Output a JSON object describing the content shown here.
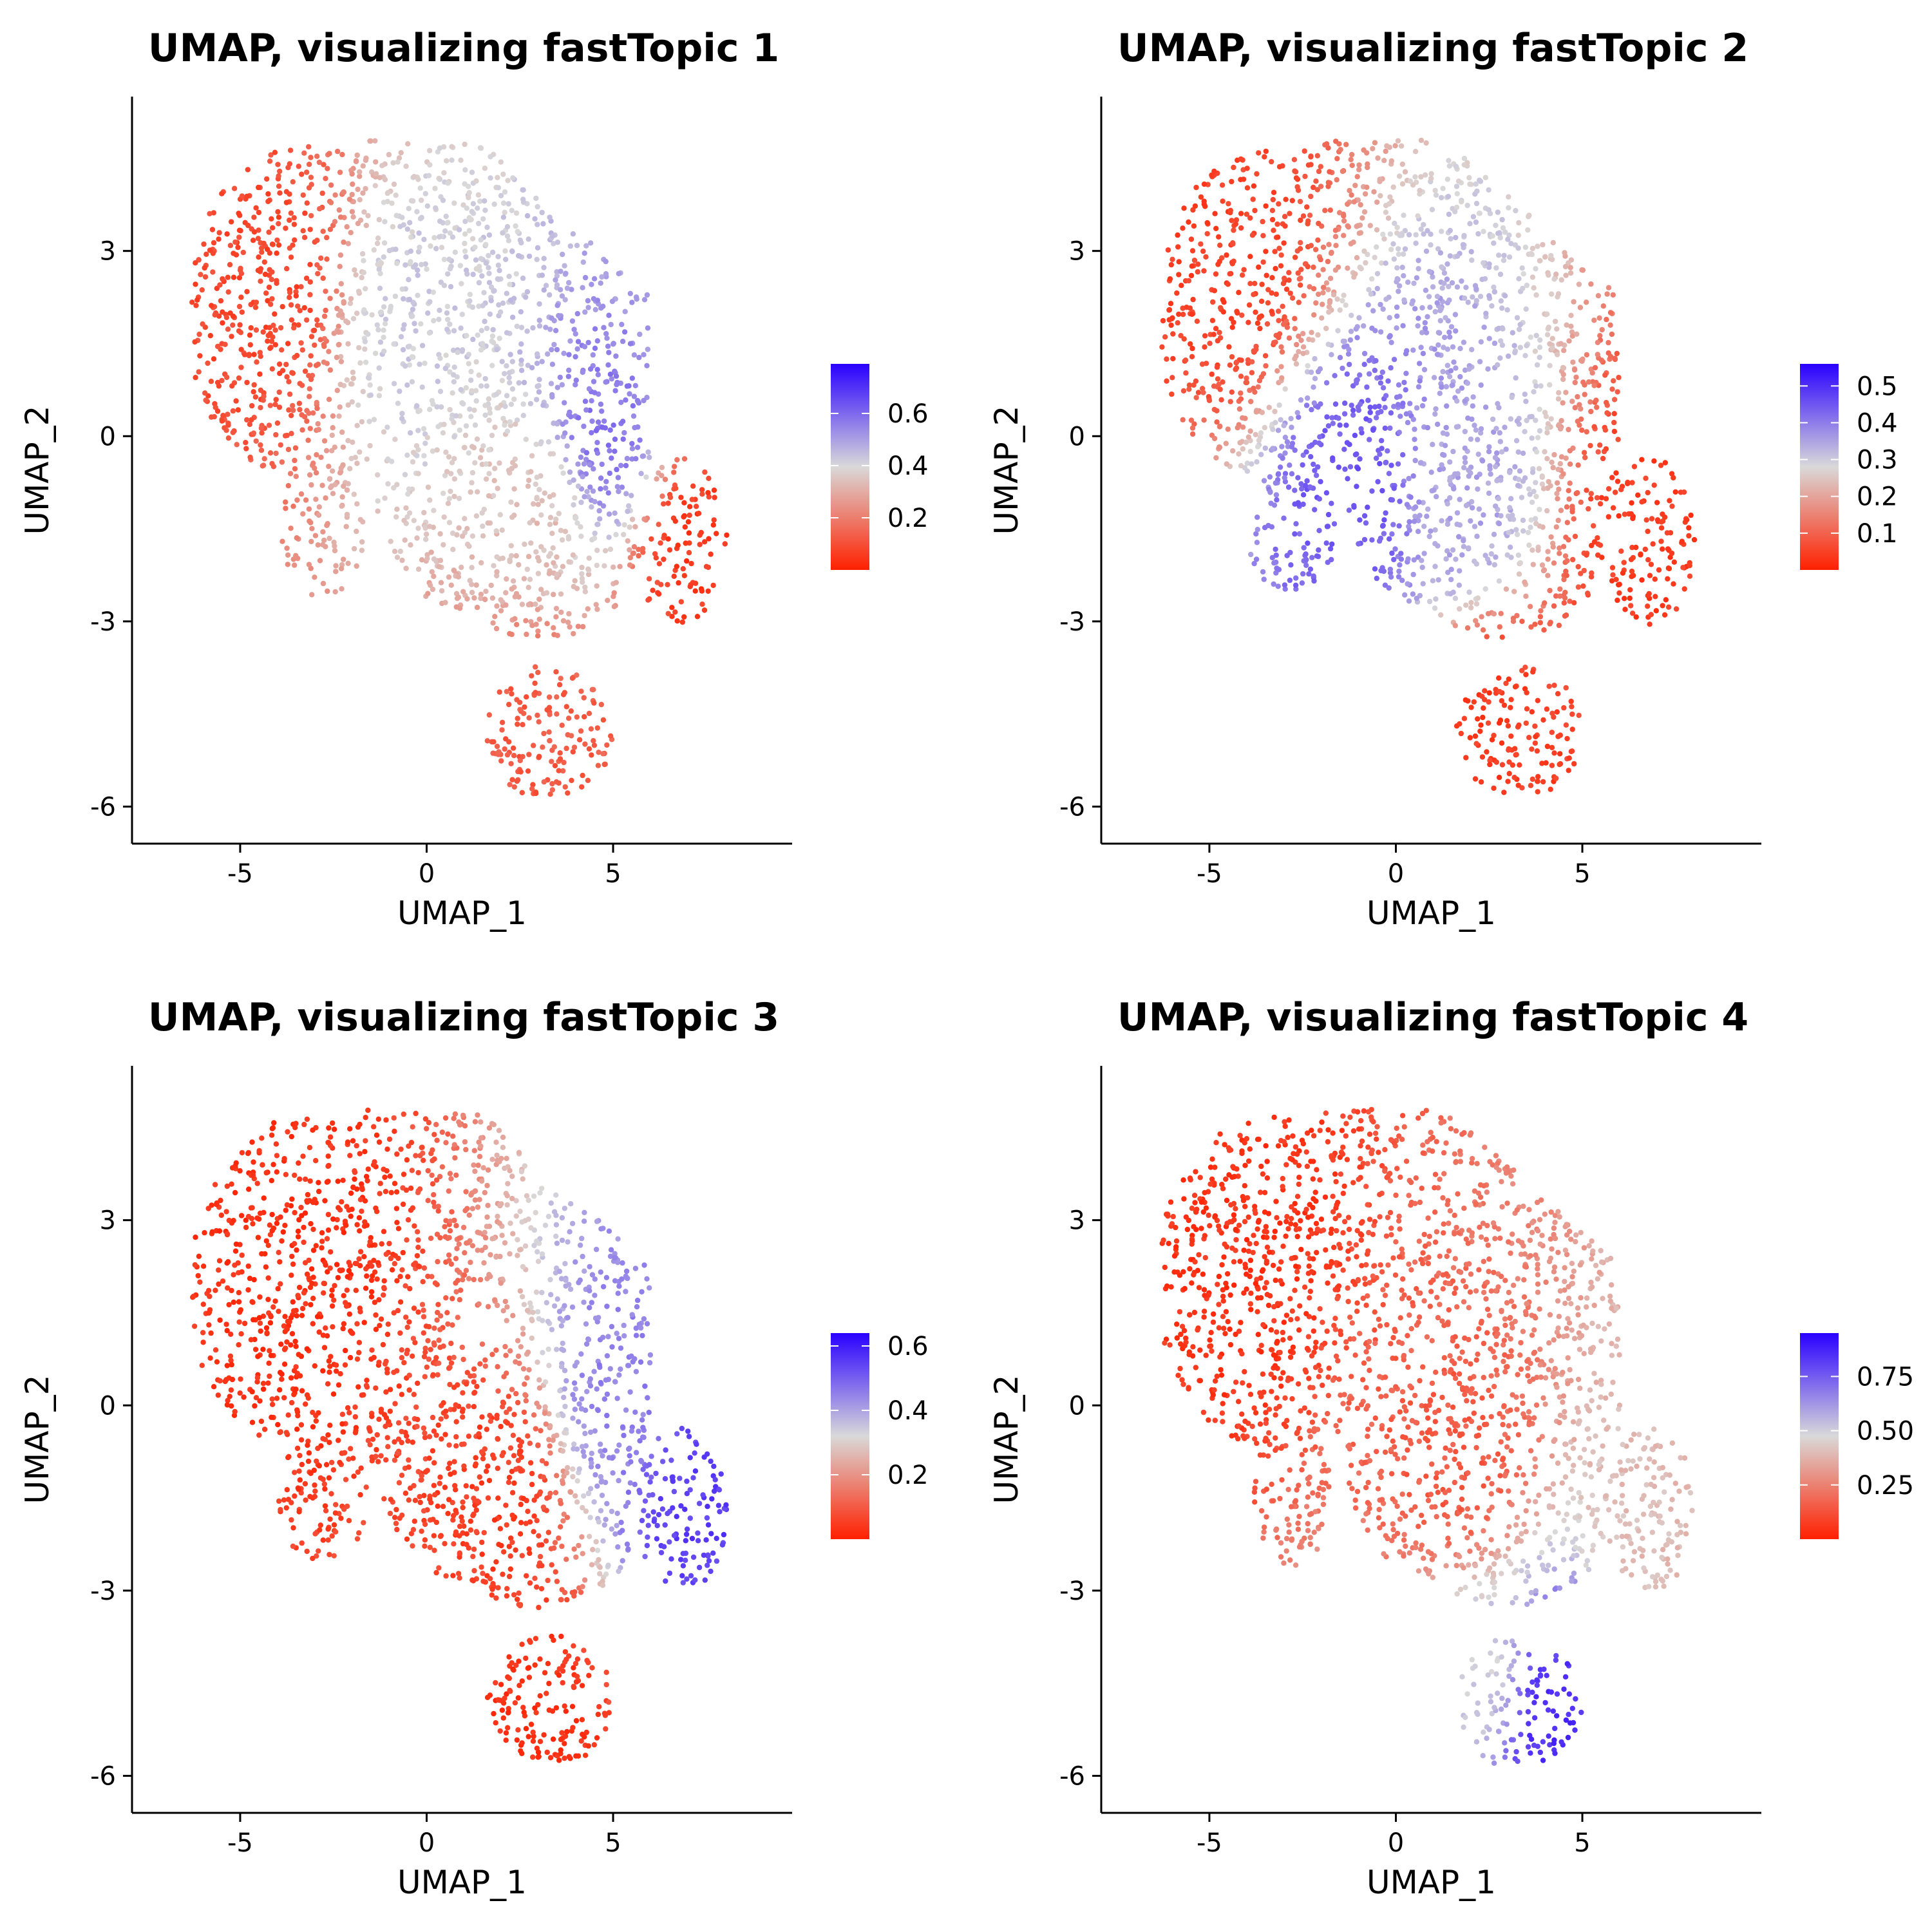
{
  "chart_data": [
    {
      "type": "scatter",
      "title": "UMAP, visualizing fastTopic 1",
      "xlabel": "UMAP_1",
      "ylabel": "UMAP_2",
      "x_ticks": [
        -5,
        0,
        5
      ],
      "y_ticks": [
        -6,
        -3,
        0,
        3
      ],
      "xlim": [
        -7.9,
        9.8
      ],
      "ylim": [
        -6.6,
        5.5
      ],
      "grid": false,
      "colorbar": {
        "ticks": [
          "0.2",
          "0.4",
          "0.6"
        ],
        "tick_values": [
          0.2,
          0.4,
          0.6
        ],
        "range": [
          0.0,
          0.79
        ],
        "colors": {
          "low": "#ff2000",
          "mid": "#d9d9d9",
          "high": "#2a00ff"
        }
      },
      "regions": [
        {
          "name": "upper-left lobe",
          "x": -4.2,
          "y": 2.4,
          "value": 0.08
        },
        {
          "name": "central ridge",
          "x": -0.5,
          "y": 1.8,
          "value": 0.42
        },
        {
          "name": "protrusion",
          "x": 4.7,
          "y": 0.0,
          "value": 0.58
        },
        {
          "name": "center",
          "x": 3.0,
          "y": -1.2,
          "value": 0.34
        },
        {
          "name": "right lobe",
          "x": 7.2,
          "y": -1.8,
          "value": 0.05
        },
        {
          "name": "bottom lobe",
          "x": 3.0,
          "y": -4.9,
          "value": 0.12
        }
      ]
    },
    {
      "type": "scatter",
      "title": "UMAP, visualizing fastTopic 2",
      "xlabel": "UMAP_1",
      "ylabel": "UMAP_2",
      "x_ticks": [
        -5,
        0,
        5
      ],
      "y_ticks": [
        -6,
        -3,
        0,
        3
      ],
      "xlim": [
        -7.9,
        9.8
      ],
      "ylim": [
        -6.6,
        5.5
      ],
      "grid": false,
      "colorbar": {
        "ticks": [
          "0.1",
          "0.2",
          "0.3",
          "0.4",
          "0.5"
        ],
        "tick_values": [
          0.1,
          0.2,
          0.3,
          0.4,
          0.5
        ],
        "range": [
          0.0,
          0.56
        ],
        "colors": {
          "low": "#ff2000",
          "mid": "#d9d9d9",
          "high": "#2a00ff"
        }
      },
      "regions": [
        {
          "name": "upper-left lobe",
          "x": -4.5,
          "y": 2.8,
          "value": 0.05
        },
        {
          "name": "middle-left",
          "x": -1.0,
          "y": -0.9,
          "value": 0.45
        },
        {
          "name": "mid-center",
          "x": 1.5,
          "y": -1.0,
          "value": 0.35
        },
        {
          "name": "right lobe",
          "x": 7.0,
          "y": -1.8,
          "value": 0.04
        },
        {
          "name": "bottom lobe",
          "x": 2.5,
          "y": -4.8,
          "value": 0.04
        }
      ]
    },
    {
      "type": "scatter",
      "title": "UMAP, visualizing fastTopic 3",
      "xlabel": "UMAP_1",
      "ylabel": "UMAP_2",
      "x_ticks": [
        -5,
        0,
        5
      ],
      "y_ticks": [
        -6,
        -3,
        0,
        3
      ],
      "xlim": [
        -7.9,
        9.8
      ],
      "ylim": [
        -6.6,
        5.5
      ],
      "grid": false,
      "colorbar": {
        "ticks": [
          "0.2",
          "0.4",
          "0.6"
        ],
        "tick_values": [
          0.2,
          0.4,
          0.6
        ],
        "range": [
          0.0,
          0.64
        ],
        "colors": {
          "low": "#ff2000",
          "mid": "#d9d9d9",
          "high": "#2a00ff"
        }
      },
      "regions": [
        {
          "name": "upper-left lobe",
          "x": -3.5,
          "y": 2.0,
          "value": 0.03
        },
        {
          "name": "center",
          "x": 2.0,
          "y": -1.5,
          "value": 0.05
        },
        {
          "name": "protrusion",
          "x": 5.2,
          "y": 0.1,
          "value": 0.45
        },
        {
          "name": "right lobe",
          "x": 7.3,
          "y": -1.6,
          "value": 0.55
        },
        {
          "name": "bottom lobe",
          "x": 3.0,
          "y": -5.0,
          "value": 0.03
        }
      ]
    },
    {
      "type": "scatter",
      "title": "UMAP, visualizing fastTopic 4",
      "xlabel": "UMAP_1",
      "ylabel": "UMAP_2",
      "x_ticks": [
        -5,
        0,
        5
      ],
      "y_ticks": [
        -6,
        -3,
        0,
        3
      ],
      "xlim": [
        -7.9,
        9.8
      ],
      "ylim": [
        -6.6,
        5.5
      ],
      "grid": false,
      "colorbar": {
        "ticks": [
          "0.25",
          "0.50",
          "0.75"
        ],
        "tick_values": [
          0.25,
          0.5,
          0.75
        ],
        "range": [
          0.0,
          0.95
        ],
        "colors": {
          "low": "#ff2000",
          "mid": "#d9d9d9",
          "high": "#2a00ff"
        }
      },
      "regions": [
        {
          "name": "upper-left lobe",
          "x": -4.5,
          "y": 2.5,
          "value": 0.05
        },
        {
          "name": "center",
          "x": 1.5,
          "y": -1.0,
          "value": 0.15
        },
        {
          "name": "right lobe",
          "x": 7.0,
          "y": -2.0,
          "value": 0.4
        },
        {
          "name": "bottom lobe",
          "x": 4.2,
          "y": -5.0,
          "value": 0.85
        },
        {
          "name": "bottom-left of lobe",
          "x": 2.2,
          "y": -4.3,
          "value": 0.5
        }
      ]
    }
  ]
}
